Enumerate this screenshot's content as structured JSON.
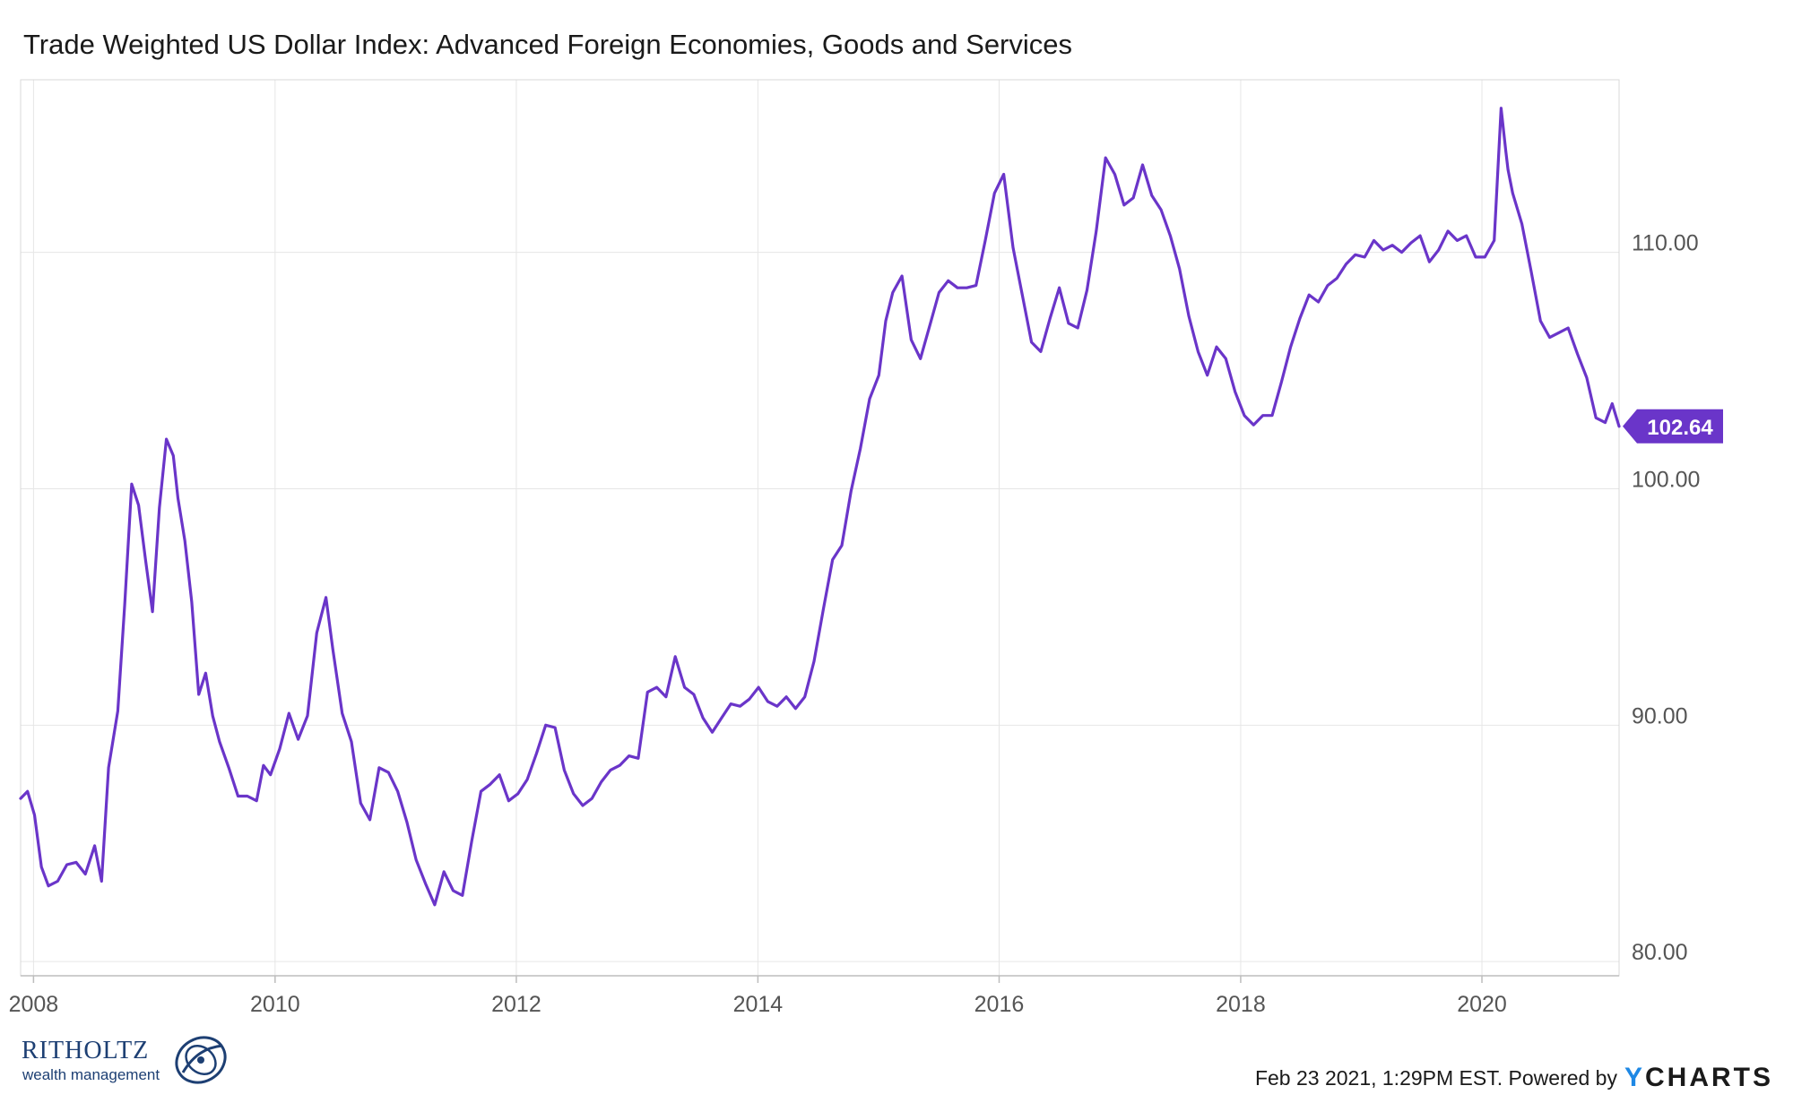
{
  "chart_data": {
    "type": "line",
    "title": "Trade Weighted US Dollar Index: Advanced Foreign Economies, Goods and Services",
    "xlabel": "",
    "ylabel": "",
    "x_ticks": [
      "2008",
      "2010",
      "2012",
      "2014",
      "2016",
      "2018",
      "2020"
    ],
    "y_ticks": [
      "80.00",
      "90.00",
      "100.00",
      "110.00"
    ],
    "ylim": [
      79.4,
      117.3
    ],
    "xlim": [
      "2007-11-23",
      "2021-02-19"
    ],
    "grid": true,
    "last_value": "102.64",
    "series": [
      {
        "color": "#6a35c9",
        "x": [
          "2007-11-23",
          "2007-12-14",
          "2008-01-04",
          "2008-01-25",
          "2008-02-15",
          "2008-03-14",
          "2008-04-11",
          "2008-05-09",
          "2008-06-06",
          "2008-07-04",
          "2008-07-25",
          "2008-08-15",
          "2008-09-12",
          "2008-10-03",
          "2008-10-24",
          "2008-11-14",
          "2008-12-05",
          "2008-12-26",
          "2009-01-16",
          "2009-02-06",
          "2009-02-27",
          "2009-03-13",
          "2009-04-03",
          "2009-04-24",
          "2009-05-15",
          "2009-06-05",
          "2009-06-26",
          "2009-07-17",
          "2009-08-14",
          "2009-09-11",
          "2009-10-09",
          "2009-11-06",
          "2009-11-27",
          "2009-12-18",
          "2010-01-15",
          "2010-02-12",
          "2010-03-12",
          "2010-04-09",
          "2010-05-07",
          "2010-06-04",
          "2010-06-25",
          "2010-07-23",
          "2010-08-20",
          "2010-09-17",
          "2010-10-15",
          "2010-11-12",
          "2010-12-10",
          "2011-01-07",
          "2011-02-04",
          "2011-03-04",
          "2011-04-01",
          "2011-04-29",
          "2011-05-27",
          "2011-06-24",
          "2011-07-22",
          "2011-08-19",
          "2011-09-16",
          "2011-10-14",
          "2011-11-11",
          "2011-12-09",
          "2012-01-06",
          "2012-02-03",
          "2012-03-02",
          "2012-03-30",
          "2012-04-27",
          "2012-05-25",
          "2012-06-22",
          "2012-07-20",
          "2012-08-17",
          "2012-09-14",
          "2012-10-12",
          "2012-11-09",
          "2012-12-07",
          "2013-01-04",
          "2013-02-01",
          "2013-03-01",
          "2013-03-29",
          "2013-04-26",
          "2013-05-24",
          "2013-06-21",
          "2013-07-19",
          "2013-08-16",
          "2013-09-13",
          "2013-10-11",
          "2013-11-08",
          "2013-12-06",
          "2014-01-03",
          "2014-01-31",
          "2014-02-28",
          "2014-03-28",
          "2014-04-25",
          "2014-05-23",
          "2014-06-20",
          "2014-07-18",
          "2014-08-15",
          "2014-09-12",
          "2014-10-10",
          "2014-11-07",
          "2014-12-05",
          "2015-01-02",
          "2015-01-23",
          "2015-02-13",
          "2015-03-13",
          "2015-04-10",
          "2015-05-08",
          "2015-06-05",
          "2015-07-03",
          "2015-07-31",
          "2015-08-28",
          "2015-09-25",
          "2015-10-23",
          "2015-11-20",
          "2015-12-18",
          "2016-01-15",
          "2016-02-12",
          "2016-03-11",
          "2016-04-08",
          "2016-05-06",
          "2016-06-03",
          "2016-07-01",
          "2016-07-29",
          "2016-08-26",
          "2016-09-23",
          "2016-10-21",
          "2016-11-18",
          "2016-12-16",
          "2017-01-13",
          "2017-02-10",
          "2017-03-10",
          "2017-04-07",
          "2017-05-05",
          "2017-06-02",
          "2017-06-30",
          "2017-07-28",
          "2017-08-25",
          "2017-09-22",
          "2017-10-20",
          "2017-11-17",
          "2017-12-15",
          "2018-01-12",
          "2018-02-09",
          "2018-03-09",
          "2018-04-06",
          "2018-05-04",
          "2018-06-01",
          "2018-06-29",
          "2018-07-27",
          "2018-08-24",
          "2018-09-21",
          "2018-10-19",
          "2018-11-16",
          "2018-12-14",
          "2019-01-11",
          "2019-02-08",
          "2019-03-08",
          "2019-04-05",
          "2019-05-03",
          "2019-05-31",
          "2019-06-28",
          "2019-07-26",
          "2019-08-23",
          "2019-09-20",
          "2019-10-18",
          "2019-11-15",
          "2019-12-13",
          "2020-01-10",
          "2020-02-07",
          "2020-02-28",
          "2020-03-13",
          "2020-03-20",
          "2020-04-03",
          "2020-05-01",
          "2020-05-29",
          "2020-06-26",
          "2020-07-24",
          "2020-08-21",
          "2020-09-18",
          "2020-10-16",
          "2020-11-13",
          "2020-12-11",
          "2021-01-08",
          "2021-01-29",
          "2021-02-19"
        ],
        "y": [
          86.9,
          87.2,
          86.2,
          84.0,
          83.2,
          83.4,
          84.1,
          84.2,
          83.7,
          84.9,
          83.4,
          88.2,
          90.6,
          95.1,
          100.2,
          99.3,
          97.0,
          94.8,
          99.2,
          102.1,
          101.4,
          99.6,
          97.8,
          95.2,
          91.3,
          92.2,
          90.4,
          89.3,
          88.2,
          87.0,
          87.0,
          86.8,
          88.3,
          87.9,
          89.0,
          90.5,
          89.4,
          90.4,
          93.9,
          95.4,
          93.2,
          90.5,
          89.3,
          86.7,
          86.0,
          88.2,
          88.0,
          87.2,
          85.9,
          84.3,
          83.3,
          82.4,
          83.8,
          83.0,
          82.8,
          85.1,
          87.2,
          87.5,
          87.9,
          86.8,
          87.1,
          87.7,
          88.8,
          90.0,
          89.9,
          88.1,
          87.1,
          86.6,
          86.9,
          87.6,
          88.1,
          88.3,
          88.7,
          88.6,
          91.4,
          91.6,
          91.2,
          92.9,
          91.6,
          91.3,
          90.3,
          89.7,
          90.3,
          90.9,
          90.8,
          91.1,
          91.6,
          91.0,
          90.8,
          91.2,
          90.7,
          91.2,
          92.7,
          94.9,
          97.0,
          97.6,
          99.9,
          101.7,
          103.8,
          104.8,
          107.1,
          108.3,
          109.0,
          106.3,
          105.5,
          106.9,
          108.3,
          108.8,
          108.5,
          108.5,
          108.6,
          110.5,
          112.5,
          113.3,
          110.2,
          108.2,
          106.2,
          105.8,
          107.2,
          108.5,
          107.0,
          106.8,
          108.4,
          110.9,
          114.0,
          113.3,
          112.0,
          112.3,
          113.7,
          112.4,
          111.8,
          110.7,
          109.3,
          107.3,
          105.8,
          104.8,
          106.0,
          105.5,
          104.1,
          103.1,
          102.7,
          103.1,
          103.1,
          104.5,
          106.0,
          107.2,
          108.2,
          107.9,
          108.6,
          108.9,
          109.5,
          109.9,
          109.8,
          110.5,
          110.1,
          110.3,
          110.0,
          110.4,
          110.7,
          109.6,
          110.1,
          110.9,
          110.5,
          110.7,
          109.8,
          109.8,
          110.5,
          116.1,
          114.3,
          113.5,
          112.5,
          111.2,
          109.2,
          107.1,
          106.4,
          106.6,
          106.8,
          105.7,
          104.7,
          103.0,
          102.8,
          103.6,
          102.64
        ]
      }
    ]
  },
  "footer": {
    "timestamp": "Feb 23 2021, 1:29PM EST. Powered by",
    "brand_y": "Y",
    "brand_rest": "CHARTS"
  },
  "logo": {
    "name": "RITHOLTZ",
    "tagline": "wealth management"
  },
  "colors": {
    "line": "#6a35c9",
    "grid": "#e6e6e6",
    "axis_text": "#555555",
    "brand_blue": "#1e88e5",
    "logo_navy": "#1d3f73"
  }
}
